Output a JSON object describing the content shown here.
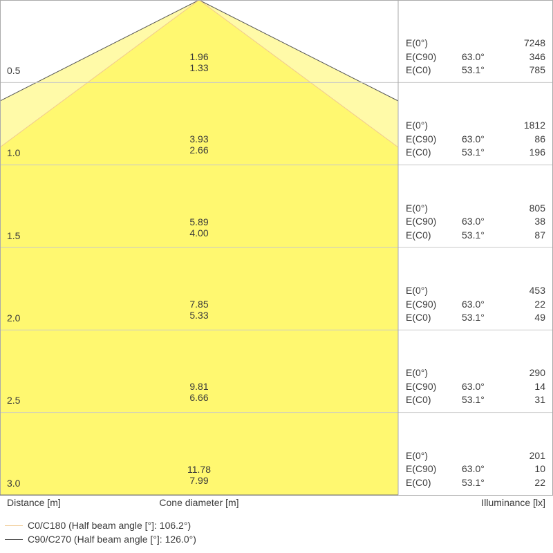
{
  "rows": [
    {
      "distance": "0.5",
      "diameter_c90": "1.96",
      "diameter_c0": "1.33",
      "e0": "7248",
      "ec90_angle": "63.0°",
      "ec90": "346",
      "ec0_angle": "53.1°",
      "ec0": "785"
    },
    {
      "distance": "1.0",
      "diameter_c90": "3.93",
      "diameter_c0": "2.66",
      "e0": "1812",
      "ec90_angle": "63.0°",
      "ec90": "86",
      "ec0_angle": "53.1°",
      "ec0": "196"
    },
    {
      "distance": "1.5",
      "diameter_c90": "5.89",
      "diameter_c0": "4.00",
      "e0": "805",
      "ec90_angle": "63.0°",
      "ec90": "38",
      "ec0_angle": "53.1°",
      "ec0": "87"
    },
    {
      "distance": "2.0",
      "diameter_c90": "7.85",
      "diameter_c0": "5.33",
      "e0": "453",
      "ec90_angle": "63.0°",
      "ec90": "22",
      "ec0_angle": "53.1°",
      "ec0": "49"
    },
    {
      "distance": "2.5",
      "diameter_c90": "9.81",
      "diameter_c0": "6.66",
      "e0": "290",
      "ec90_angle": "63.0°",
      "ec90": "14",
      "ec0_angle": "53.1°",
      "ec0": "31"
    },
    {
      "distance": "3.0",
      "diameter_c90": "11.78",
      "diameter_c0": "7.99",
      "e0": "201",
      "ec90_angle": "63.0°",
      "ec90": "10",
      "ec0_angle": "53.1°",
      "ec0": "22"
    }
  ],
  "labels": {
    "e0": "E(0°)",
    "ec90": "E(C90)",
    "ec0": "E(C0)",
    "distance": "Distance [m]",
    "cone": "Cone diameter [m]",
    "illuminance": "Illuminance [lx]"
  },
  "legend": [
    {
      "label": "C0/C180 (Half beam angle [°]: 106.2°)",
      "color": "#f0c890"
    },
    {
      "label": "C90/C270 (Half beam angle [°]: 126.0°)",
      "color": "#555555"
    }
  ],
  "colors": {
    "outer_fill": "#fffaa8",
    "inner_fill": "#fff870",
    "grid": "#c8c8c8"
  }
}
